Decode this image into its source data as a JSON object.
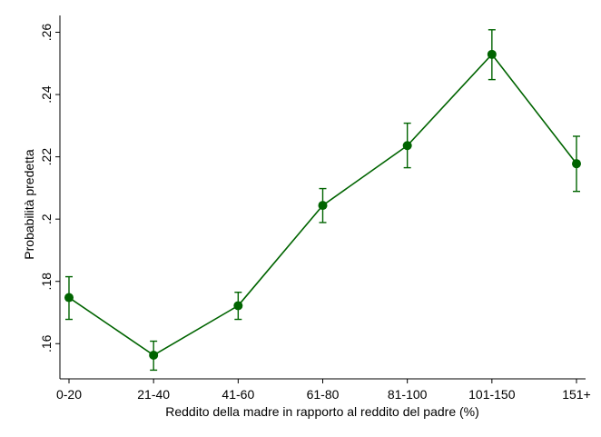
{
  "chart_data": {
    "type": "line",
    "title": "",
    "xlabel": "Reddito della madre in rapporto al reddito del padre (%)",
    "ylabel": "Probabilità predetta",
    "categories": [
      "0-20",
      "21-40",
      "41-60",
      "61-80",
      "81-100",
      "101-150",
      "151+"
    ],
    "series": [
      {
        "values": [
          0.1748,
          0.1563,
          0.1722,
          0.2044,
          0.2236,
          0.2529,
          0.2178
        ],
        "ci_low": [
          0.1678,
          0.1515,
          0.1678,
          0.1989,
          0.2165,
          0.2448,
          0.2089
        ],
        "ci_high": [
          0.1815,
          0.1608,
          0.1765,
          0.2098,
          0.2308,
          0.2608,
          0.2266
        ]
      }
    ],
    "yticks": [
      ".16",
      ".18",
      ".2",
      ".22",
      ".24",
      ".26"
    ],
    "ytick_values": [
      0.16,
      0.18,
      0.2,
      0.22,
      0.24,
      0.26
    ],
    "ylim": [
      0.1487,
      0.2654
    ],
    "grid": false,
    "color": "#006400"
  }
}
